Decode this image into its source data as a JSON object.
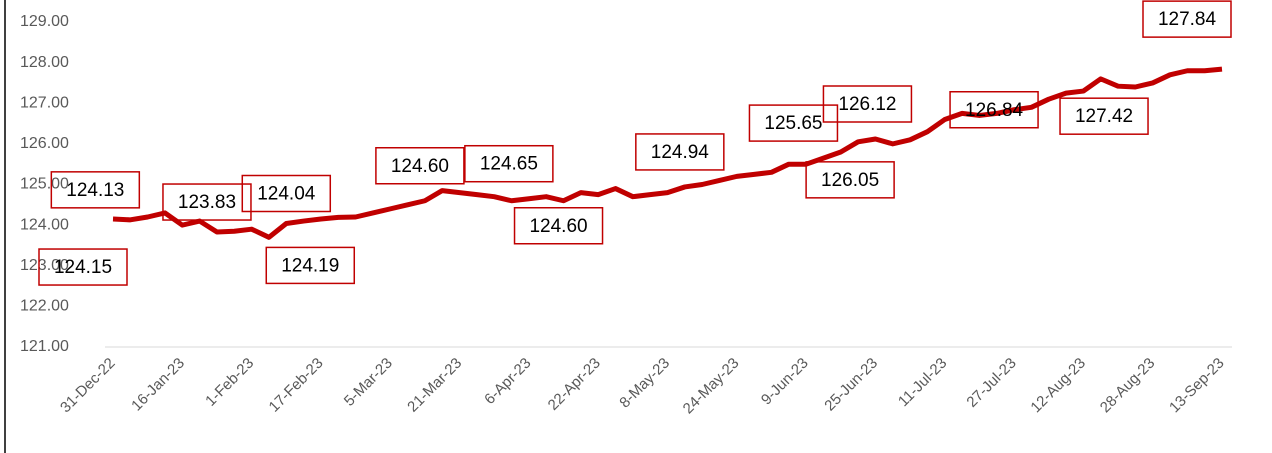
{
  "chart_data": {
    "type": "line",
    "categories": [
      "31-Dec-22",
      null,
      null,
      null,
      "16-Jan-23",
      null,
      null,
      null,
      "1-Feb-23",
      null,
      null,
      null,
      "17-Feb-23",
      null,
      null,
      null,
      "5-Mar-23",
      null,
      null,
      null,
      "21-Mar-23",
      null,
      null,
      null,
      "6-Apr-23",
      null,
      null,
      null,
      "22-Apr-23",
      null,
      null,
      null,
      "8-May-23",
      null,
      null,
      null,
      "24-May-23",
      null,
      null,
      null,
      "9-Jun-23",
      null,
      null,
      null,
      "25-Jun-23",
      null,
      null,
      null,
      "11-Jul-23",
      null,
      null,
      null,
      "27-Jul-23",
      null,
      null,
      null,
      "12-Aug-23",
      null,
      null,
      null,
      "28-Aug-23",
      null,
      null,
      null,
      "13-Sep-23"
    ],
    "series": [
      {
        "color": "#c00000",
        "values": [
          124.15,
          124.13,
          124.2,
          124.3,
          124.0,
          124.1,
          123.83,
          123.85,
          123.9,
          123.7,
          124.04,
          124.1,
          124.15,
          124.19,
          124.2,
          124.3,
          124.4,
          124.5,
          124.6,
          124.85,
          124.8,
          124.75,
          124.7,
          124.6,
          124.65,
          124.7,
          124.6,
          124.8,
          124.75,
          124.9,
          124.7,
          124.75,
          124.8,
          124.94,
          125.0,
          125.1,
          125.2,
          125.25,
          125.3,
          125.5,
          125.5,
          125.65,
          125.8,
          126.05,
          126.12,
          126.0,
          126.1,
          126.3,
          126.6,
          126.75,
          126.7,
          126.75,
          126.84,
          126.9,
          127.1,
          127.25,
          127.3,
          127.6,
          127.42,
          127.4,
          127.5,
          127.7,
          127.8,
          127.8,
          127.84
        ],
        "value_labels": [
          "124.15",
          "124.13",
          null,
          null,
          null,
          null,
          "123.83",
          null,
          null,
          null,
          "124.04",
          null,
          null,
          "124.19",
          null,
          null,
          null,
          null,
          "124.60",
          null,
          null,
          null,
          null,
          null,
          "124.65",
          null,
          "124.60",
          null,
          null,
          null,
          null,
          null,
          null,
          "124.94",
          null,
          null,
          null,
          null,
          null,
          null,
          null,
          "125.65",
          null,
          "126.05",
          "126.12",
          null,
          null,
          null,
          null,
          null,
          null,
          null,
          "126.84",
          null,
          null,
          null,
          null,
          null,
          "127.42",
          null,
          null,
          null,
          null,
          null,
          "127.84"
        ]
      }
    ],
    "ylim": [
      121,
      129
    ],
    "yticks": [
      {
        "value": 121,
        "label": "121.00"
      },
      {
        "value": 122,
        "label": "122.00"
      },
      {
        "value": 123,
        "label": "123.00"
      },
      {
        "value": 124,
        "label": "124.00"
      },
      {
        "value": 125,
        "label": "125.00"
      },
      {
        "value": 126,
        "label": "126.00"
      },
      {
        "value": 127,
        "label": "127.00"
      },
      {
        "value": 128,
        "label": "128.00"
      },
      {
        "value": 129,
        "label": "129.00"
      }
    ]
  }
}
